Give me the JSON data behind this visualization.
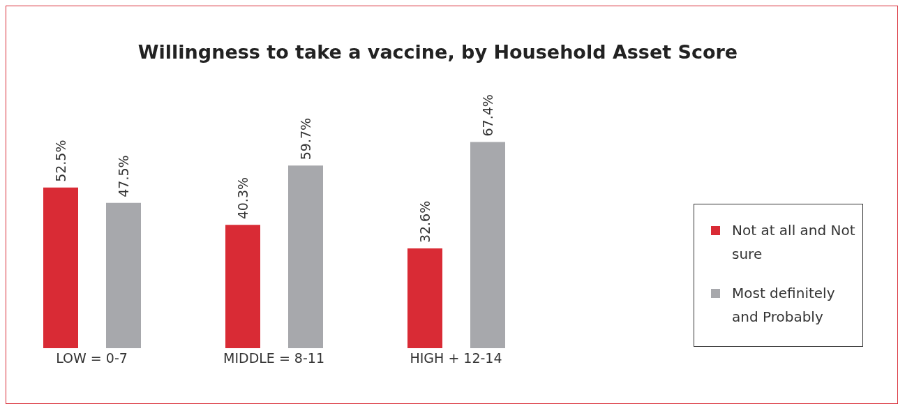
{
  "chart_data": {
    "type": "bar",
    "title": "Willingness to take a vaccine, by Household Asset Score",
    "categories": [
      "LOW = 0-7",
      "MIDDLE = 8-11",
      "HIGH + 12-14"
    ],
    "series": [
      {
        "name": "Not at all and Not sure",
        "color": "#d92b35",
        "values": [
          52.5,
          40.3,
          32.6
        ],
        "value_labels": [
          "52.5%",
          "40.3%",
          "32.6%"
        ]
      },
      {
        "name": "Most definitely and Probably",
        "color": "#a7a8ac",
        "values": [
          47.5,
          59.7,
          67.4
        ],
        "value_labels": [
          "47.5%",
          "59.7%",
          "67.4%"
        ]
      }
    ],
    "legend": "right",
    "grid": false
  }
}
